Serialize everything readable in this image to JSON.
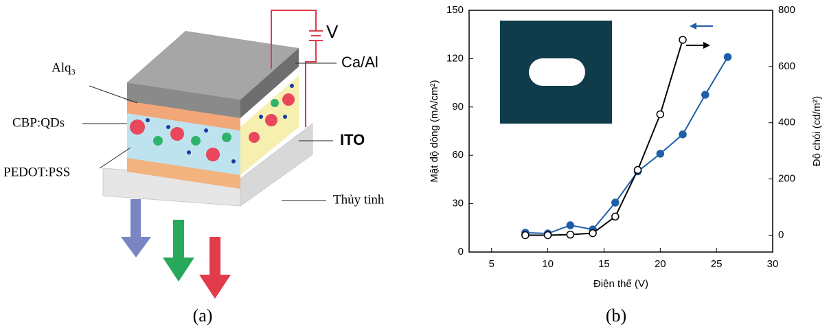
{
  "diagram": {
    "labels": [
      "Alq₃",
      "CBP:QDs",
      "PEDOT:PSS",
      "V",
      "Ca/Al",
      "ITO",
      "Thủy tinh"
    ],
    "caption": "(a)"
  },
  "chart_data": {
    "type": "line",
    "caption": "(b)",
    "xlabel": "Điện thế (V)",
    "ylabel": "Mật độ dòng (mA/cm²)",
    "y2label": "Độ chói (cd/m²)",
    "x": [
      8,
      10,
      12,
      14,
      16,
      18,
      20,
      22,
      24,
      26
    ],
    "series": [
      {
        "color": "#1f5fa8",
        "marker": "filled",
        "values": [
          12,
          11.5,
          16.6,
          14,
          30.7,
          50,
          61,
          73,
          97.6,
          121
        ]
      },
      {
        "color": "#000000",
        "marker": "open",
        "axis": "y2",
        "values": [
          0,
          0,
          2,
          7,
          66,
          232,
          430,
          695,
          null,
          null
        ]
      }
    ],
    "xlim": [
      3,
      30
    ],
    "xticks": [
      5,
      10,
      15,
      20,
      25,
      30
    ],
    "ylim": [
      0,
      150
    ],
    "yticks": [
      0,
      30,
      60,
      90,
      120,
      150
    ],
    "y2lim": [
      -60,
      800
    ],
    "y2ticks": [
      0,
      200,
      400,
      600,
      800
    ]
  }
}
